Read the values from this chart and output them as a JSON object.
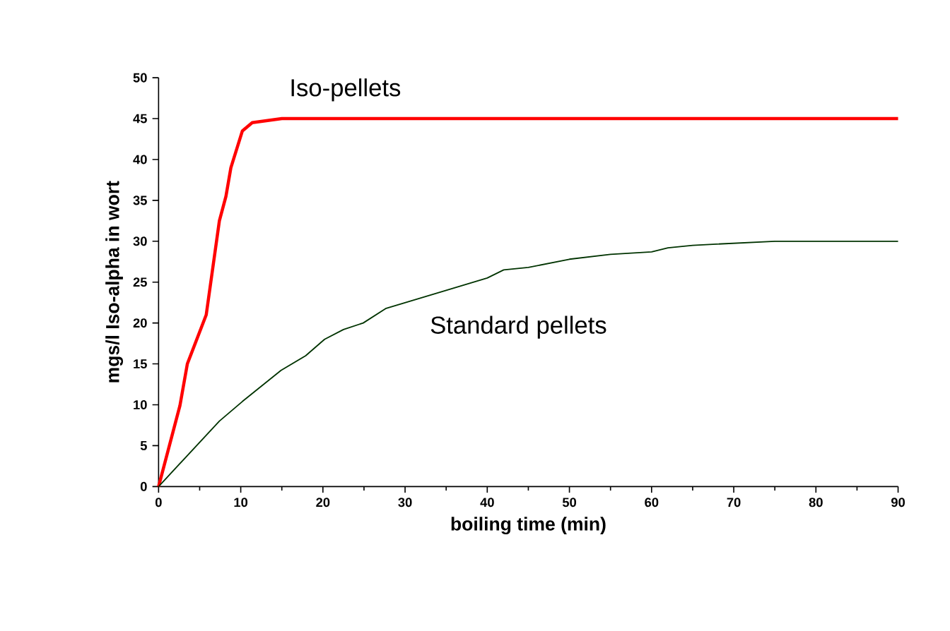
{
  "chart_data": {
    "type": "line",
    "xlabel": "boiling time (min)",
    "ylabel": "mgs/l Iso-alpha in wort",
    "xlim": [
      0,
      90
    ],
    "xticks": [
      0,
      10,
      20,
      30,
      40,
      50,
      60,
      70,
      80,
      90
    ],
    "ylim": [
      0,
      50
    ],
    "yticks": [
      0,
      5,
      10,
      15,
      20,
      25,
      30,
      35,
      40,
      45,
      50
    ],
    "grid": false,
    "legend": false,
    "marker": "none",
    "line_style": "solid",
    "series": [
      {
        "name": "Iso-pellets",
        "color": "#ff0000",
        "x": [
          0,
          2.6,
          3.5,
          5.8,
          7.4,
          8.2,
          8.8,
          10.2,
          11.4,
          15,
          90
        ],
        "values": [
          0,
          9.9,
          15,
          21,
          32.5,
          35.5,
          39,
          43.5,
          44.5,
          45,
          45
        ]
      },
      {
        "name": "Standard pellets",
        "color": "#003300",
        "x": [
          0,
          7.4,
          10.2,
          14.9,
          17.9,
          20.2,
          22.5,
          24.9,
          27.7,
          35,
          40,
          42,
          45,
          50,
          55,
          60,
          62,
          65,
          75,
          90
        ],
        "values": [
          0,
          8,
          10.4,
          14.2,
          16,
          18,
          19.2,
          20,
          21.8,
          24,
          25.5,
          26.5,
          26.8,
          27.8,
          28.4,
          28.7,
          29.2,
          29.5,
          30,
          30
        ]
      }
    ]
  }
}
